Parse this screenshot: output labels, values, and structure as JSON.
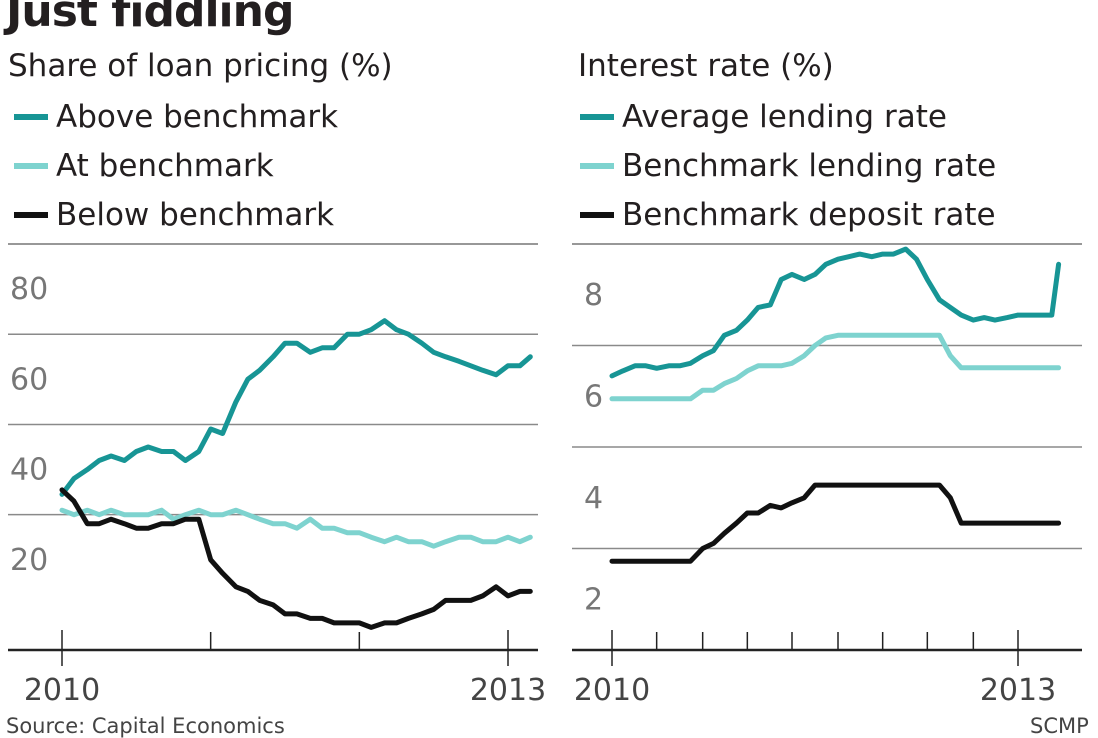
{
  "title": "Just fiddling",
  "source": "Source: Capital Economics",
  "credit": "SCMP",
  "colors": {
    "above": "#179595",
    "at": "#7ed3cf",
    "below": "#111111",
    "grid": "#8a8a8a",
    "axis": "#222222"
  },
  "chart_data": [
    {
      "type": "line",
      "ylabel": "Share of loan pricing (%)",
      "ylim": [
        0,
        90
      ],
      "yticks": [
        20,
        40,
        60,
        80
      ],
      "xlim": [
        2010.0,
        2013.2
      ],
      "xticks_major": [
        {
          "x": 2010.0,
          "label": "2010"
        },
        {
          "x": 2013.0,
          "label": "2013"
        }
      ],
      "xticks_minor": [
        2011.0,
        2012.0
      ],
      "grid": true,
      "legend_position": "top",
      "series": [
        {
          "name": "Above benchmark",
          "color": "above",
          "values": [
            [
              2010.0,
              34.5
            ],
            [
              2010.08,
              38
            ],
            [
              2010.17,
              40
            ],
            [
              2010.25,
              42
            ],
            [
              2010.33,
              43
            ],
            [
              2010.42,
              42
            ],
            [
              2010.5,
              44
            ],
            [
              2010.58,
              45
            ],
            [
              2010.67,
              44
            ],
            [
              2010.75,
              44
            ],
            [
              2010.83,
              42
            ],
            [
              2010.92,
              44
            ],
            [
              2011.0,
              49
            ],
            [
              2011.08,
              48
            ],
            [
              2011.17,
              55
            ],
            [
              2011.25,
              60
            ],
            [
              2011.33,
              62
            ],
            [
              2011.42,
              65
            ],
            [
              2011.5,
              68
            ],
            [
              2011.58,
              68
            ],
            [
              2011.67,
              66
            ],
            [
              2011.75,
              67
            ],
            [
              2011.83,
              67
            ],
            [
              2011.92,
              70
            ],
            [
              2012.0,
              70
            ],
            [
              2012.08,
              71
            ],
            [
              2012.17,
              73
            ],
            [
              2012.25,
              71
            ],
            [
              2012.33,
              70
            ],
            [
              2012.42,
              68
            ],
            [
              2012.5,
              66
            ],
            [
              2012.58,
              65
            ],
            [
              2012.67,
              64
            ],
            [
              2012.75,
              63
            ],
            [
              2012.83,
              62
            ],
            [
              2012.92,
              61
            ],
            [
              2013.0,
              63
            ],
            [
              2013.08,
              63
            ],
            [
              2013.15,
              65
            ]
          ]
        },
        {
          "name": "At benchmark",
          "color": "at",
          "values": [
            [
              2010.0,
              31
            ],
            [
              2010.08,
              30
            ],
            [
              2010.17,
              31
            ],
            [
              2010.25,
              30
            ],
            [
              2010.33,
              31
            ],
            [
              2010.42,
              30
            ],
            [
              2010.5,
              30
            ],
            [
              2010.58,
              30
            ],
            [
              2010.67,
              31
            ],
            [
              2010.75,
              29
            ],
            [
              2010.83,
              30
            ],
            [
              2010.92,
              31
            ],
            [
              2011.0,
              30
            ],
            [
              2011.08,
              30
            ],
            [
              2011.17,
              31
            ],
            [
              2011.25,
              30
            ],
            [
              2011.33,
              29
            ],
            [
              2011.42,
              28
            ],
            [
              2011.5,
              28
            ],
            [
              2011.58,
              27
            ],
            [
              2011.67,
              29
            ],
            [
              2011.75,
              27
            ],
            [
              2011.83,
              27
            ],
            [
              2011.92,
              26
            ],
            [
              2012.0,
              26
            ],
            [
              2012.08,
              25
            ],
            [
              2012.17,
              24
            ],
            [
              2012.25,
              25
            ],
            [
              2012.33,
              24
            ],
            [
              2012.42,
              24
            ],
            [
              2012.5,
              23
            ],
            [
              2012.58,
              24
            ],
            [
              2012.67,
              25
            ],
            [
              2012.75,
              25
            ],
            [
              2012.83,
              24
            ],
            [
              2012.92,
              24
            ],
            [
              2013.0,
              25
            ],
            [
              2013.08,
              24
            ],
            [
              2013.15,
              25
            ]
          ]
        },
        {
          "name": "Below benchmark",
          "color": "below",
          "values": [
            [
              2010.0,
              35.5
            ],
            [
              2010.08,
              33
            ],
            [
              2010.17,
              28
            ],
            [
              2010.25,
              28
            ],
            [
              2010.33,
              29
            ],
            [
              2010.42,
              28
            ],
            [
              2010.5,
              27
            ],
            [
              2010.58,
              27
            ],
            [
              2010.67,
              28
            ],
            [
              2010.75,
              28
            ],
            [
              2010.83,
              29
            ],
            [
              2010.92,
              29
            ],
            [
              2011.0,
              20
            ],
            [
              2011.08,
              17
            ],
            [
              2011.17,
              14
            ],
            [
              2011.25,
              13
            ],
            [
              2011.33,
              11
            ],
            [
              2011.42,
              10
            ],
            [
              2011.5,
              8
            ],
            [
              2011.58,
              8
            ],
            [
              2011.67,
              7
            ],
            [
              2011.75,
              7
            ],
            [
              2011.83,
              6
            ],
            [
              2011.92,
              6
            ],
            [
              2012.0,
              6
            ],
            [
              2012.08,
              5
            ],
            [
              2012.17,
              6
            ],
            [
              2012.25,
              6
            ],
            [
              2012.33,
              7
            ],
            [
              2012.42,
              8
            ],
            [
              2012.5,
              9
            ],
            [
              2012.58,
              11
            ],
            [
              2012.67,
              11
            ],
            [
              2012.75,
              11
            ],
            [
              2012.83,
              12
            ],
            [
              2012.92,
              14
            ],
            [
              2013.0,
              12
            ],
            [
              2013.08,
              13
            ],
            [
              2013.15,
              13
            ]
          ]
        }
      ]
    },
    {
      "type": "line",
      "ylabel": "Interest rate (%)",
      "ylim": [
        1,
        9
      ],
      "yticks": [
        2,
        4,
        6,
        8
      ],
      "xlim": [
        2010.0,
        2013.3
      ],
      "xticks_major": [
        {
          "x": 2010.0,
          "label": "2010"
        },
        {
          "x": 2013.0,
          "label": "2013"
        }
      ],
      "xticks_minor": [
        2010.33,
        2010.67,
        2011.0,
        2011.33,
        2011.67,
        2012.0,
        2012.33,
        2012.67
      ],
      "grid": true,
      "legend_position": "top",
      "series": [
        {
          "name": "Average lending rate",
          "color": "above",
          "values": [
            [
              2010.0,
              6.4
            ],
            [
              2010.08,
              6.5
            ],
            [
              2010.17,
              6.6
            ],
            [
              2010.25,
              6.6
            ],
            [
              2010.33,
              6.55
            ],
            [
              2010.42,
              6.6
            ],
            [
              2010.5,
              6.6
            ],
            [
              2010.58,
              6.65
            ],
            [
              2010.67,
              6.8
            ],
            [
              2010.75,
              6.9
            ],
            [
              2010.83,
              7.2
            ],
            [
              2010.92,
              7.3
            ],
            [
              2011.0,
              7.5
            ],
            [
              2011.08,
              7.75
            ],
            [
              2011.17,
              7.8
            ],
            [
              2011.25,
              8.3
            ],
            [
              2011.33,
              8.4
            ],
            [
              2011.42,
              8.3
            ],
            [
              2011.5,
              8.4
            ],
            [
              2011.58,
              8.6
            ],
            [
              2011.67,
              8.7
            ],
            [
              2011.75,
              8.75
            ],
            [
              2011.83,
              8.8
            ],
            [
              2011.92,
              8.75
            ],
            [
              2012.0,
              8.8
            ],
            [
              2012.08,
              8.8
            ],
            [
              2012.17,
              8.9
            ],
            [
              2012.25,
              8.7
            ],
            [
              2012.33,
              8.3
            ],
            [
              2012.42,
              7.9
            ],
            [
              2012.5,
              7.75
            ],
            [
              2012.58,
              7.6
            ],
            [
              2012.67,
              7.5
            ],
            [
              2012.75,
              7.55
            ],
            [
              2012.83,
              7.5
            ],
            [
              2012.92,
              7.55
            ],
            [
              2013.0,
              7.6
            ],
            [
              2013.08,
              7.6
            ],
            [
              2013.17,
              7.6
            ],
            [
              2013.25,
              7.6
            ],
            [
              2013.3,
              8.6
            ]
          ]
        },
        {
          "name": "Benchmark lending rate",
          "color": "at",
          "values": [
            [
              2010.0,
              5.95
            ],
            [
              2010.08,
              5.95
            ],
            [
              2010.17,
              5.95
            ],
            [
              2010.25,
              5.95
            ],
            [
              2010.33,
              5.95
            ],
            [
              2010.42,
              5.95
            ],
            [
              2010.5,
              5.95
            ],
            [
              2010.58,
              5.95
            ],
            [
              2010.67,
              6.12
            ],
            [
              2010.75,
              6.12
            ],
            [
              2010.83,
              6.25
            ],
            [
              2010.92,
              6.35
            ],
            [
              2011.0,
              6.5
            ],
            [
              2011.08,
              6.6
            ],
            [
              2011.17,
              6.6
            ],
            [
              2011.25,
              6.6
            ],
            [
              2011.33,
              6.65
            ],
            [
              2011.42,
              6.8
            ],
            [
              2011.5,
              7.0
            ],
            [
              2011.58,
              7.15
            ],
            [
              2011.67,
              7.2
            ],
            [
              2011.75,
              7.2
            ],
            [
              2011.83,
              7.2
            ],
            [
              2011.92,
              7.2
            ],
            [
              2012.0,
              7.2
            ],
            [
              2012.08,
              7.2
            ],
            [
              2012.17,
              7.2
            ],
            [
              2012.25,
              7.2
            ],
            [
              2012.33,
              7.2
            ],
            [
              2012.42,
              7.2
            ],
            [
              2012.5,
              6.8
            ],
            [
              2012.58,
              6.56
            ],
            [
              2012.67,
              6.56
            ],
            [
              2012.75,
              6.56
            ],
            [
              2012.83,
              6.56
            ],
            [
              2012.92,
              6.56
            ],
            [
              2013.0,
              6.56
            ],
            [
              2013.08,
              6.56
            ],
            [
              2013.17,
              6.56
            ],
            [
              2013.25,
              6.56
            ],
            [
              2013.3,
              6.56
            ]
          ]
        },
        {
          "name": "Benchmark deposit rate",
          "color": "below",
          "values": [
            [
              2010.0,
              2.75
            ],
            [
              2010.08,
              2.75
            ],
            [
              2010.17,
              2.75
            ],
            [
              2010.25,
              2.75
            ],
            [
              2010.33,
              2.75
            ],
            [
              2010.42,
              2.75
            ],
            [
              2010.5,
              2.75
            ],
            [
              2010.58,
              2.75
            ],
            [
              2010.67,
              3.0
            ],
            [
              2010.75,
              3.1
            ],
            [
              2010.83,
              3.3
            ],
            [
              2010.92,
              3.5
            ],
            [
              2011.0,
              3.7
            ],
            [
              2011.08,
              3.7
            ],
            [
              2011.17,
              3.85
            ],
            [
              2011.25,
              3.8
            ],
            [
              2011.33,
              3.9
            ],
            [
              2011.42,
              4.0
            ],
            [
              2011.5,
              4.25
            ],
            [
              2011.58,
              4.25
            ],
            [
              2011.67,
              4.25
            ],
            [
              2011.75,
              4.25
            ],
            [
              2011.83,
              4.25
            ],
            [
              2011.92,
              4.25
            ],
            [
              2012.0,
              4.25
            ],
            [
              2012.08,
              4.25
            ],
            [
              2012.17,
              4.25
            ],
            [
              2012.25,
              4.25
            ],
            [
              2012.33,
              4.25
            ],
            [
              2012.42,
              4.25
            ],
            [
              2012.5,
              4.0
            ],
            [
              2012.58,
              3.5
            ],
            [
              2012.67,
              3.5
            ],
            [
              2012.75,
              3.5
            ],
            [
              2012.83,
              3.5
            ],
            [
              2012.92,
              3.5
            ],
            [
              2013.0,
              3.5
            ],
            [
              2013.08,
              3.5
            ],
            [
              2013.17,
              3.5
            ],
            [
              2013.25,
              3.5
            ],
            [
              2013.3,
              3.5
            ]
          ]
        }
      ]
    }
  ]
}
